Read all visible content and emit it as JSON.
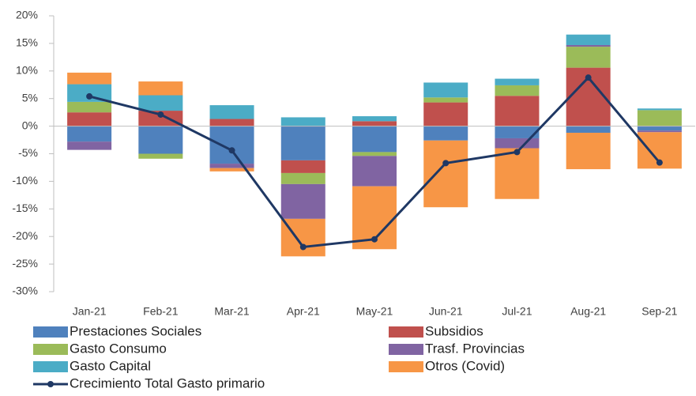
{
  "chart_data": {
    "type": "stacked_bar_line",
    "categories": [
      "Jan-21",
      "Feb-21",
      "Mar-21",
      "Apr-21",
      "May-21",
      "Jun-21",
      "Jul-21",
      "Aug-21",
      "Sep-21"
    ],
    "series": [
      {
        "name": "Prestaciones Sociales",
        "color": "#4f81bd",
        "values": [
          -2.8,
          -5,
          -6.8,
          -6.2,
          -4.7,
          -2.6,
          -2.2,
          -1.2,
          -0.8
        ]
      },
      {
        "name": "Subsidios",
        "color": "#c0504d",
        "values": [
          2.5,
          2.8,
          1.3,
          -2.3,
          0.9,
          4.3,
          5.5,
          10.6,
          0
        ]
      },
      {
        "name": "Gasto Consumo",
        "color": "#9bbb59",
        "values": [
          1.9,
          -0.9,
          0,
          -2,
          -0.7,
          0.9,
          1.9,
          3.8,
          2.9
        ]
      },
      {
        "name": "Trasf. Provincias",
        "color": "#8064a2",
        "values": [
          -1.5,
          0,
          -0.8,
          -6.3,
          -5.5,
          0,
          -1.8,
          0.3,
          -0.3
        ]
      },
      {
        "name": "Gasto Capital",
        "color": "#4bacc6",
        "values": [
          3.2,
          2.8,
          2.5,
          1.6,
          0.9,
          2.7,
          1.2,
          1.9,
          0.3
        ]
      },
      {
        "name": "Otros (Covid)",
        "color": "#f79646",
        "values": [
          2.1,
          2.5,
          -0.6,
          -6.8,
          -11.4,
          -12.1,
          -9.2,
          -6.6,
          -6.6
        ]
      }
    ],
    "line": {
      "name": "Crecimiento Total Gasto primario",
      "color": "#1f3864",
      "values": [
        5.4,
        2.1,
        -4.4,
        -21.9,
        -20.5,
        -6.7,
        -4.7,
        8.8,
        -6.6
      ]
    },
    "ylim": [
      -30,
      20
    ],
    "yticks": [
      {
        "value": -30,
        "label": "-30%"
      },
      {
        "value": -25,
        "label": "-25%"
      },
      {
        "value": -20,
        "label": "-20%"
      },
      {
        "value": -15,
        "label": "-15%"
      },
      {
        "value": -10,
        "label": "-10%"
      },
      {
        "value": -5,
        "label": "-5%"
      },
      {
        "value": 0,
        "label": "0%"
      },
      {
        "value": 5,
        "label": "5%"
      },
      {
        "value": 10,
        "label": "10%"
      },
      {
        "value": 15,
        "label": "15%"
      },
      {
        "value": 20,
        "label": "20%"
      }
    ],
    "grid": false
  }
}
